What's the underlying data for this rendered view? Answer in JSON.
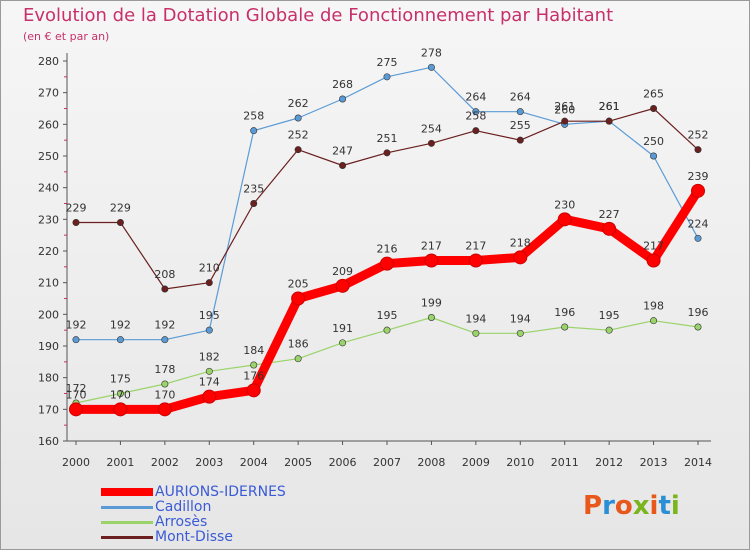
{
  "header": {
    "title": "Evolution de la Dotation Globale de Fonctionnement par Habitant",
    "subtitle": "(en € et par an)"
  },
  "logo": {
    "text": "Proxiti",
    "colors": [
      "#e8571b",
      "#2b8fd6",
      "#e8571b",
      "#7ab51d",
      "#e8571b",
      "#2b8fd6",
      "#7ab51d"
    ]
  },
  "chart_data": {
    "type": "line",
    "title": "Evolution de la Dotation Globale de Fonctionnement par Habitant",
    "subtitle": "(en € et par an)",
    "xlabel": "",
    "ylabel": "",
    "x": [
      "2000",
      "2001",
      "2002",
      "2003",
      "2004",
      "2005",
      "2006",
      "2007",
      "2008",
      "2009",
      "2010",
      "2011",
      "2012",
      "2013",
      "2014"
    ],
    "ylim": [
      160,
      280
    ],
    "yticks": [
      160,
      170,
      180,
      190,
      200,
      210,
      220,
      230,
      240,
      250,
      260,
      270,
      280
    ],
    "grid": false,
    "legend_position": "bottom-left",
    "series": [
      {
        "name": "AURIONS-IDERNES",
        "color": "#ff0000",
        "values": [
          170,
          170,
          170,
          174,
          176,
          205,
          209,
          216,
          217,
          217,
          218,
          230,
          227,
          217,
          239
        ],
        "labels": [
          "170",
          "170",
          "170",
          "174",
          "176",
          "205",
          "209",
          "216",
          "217",
          "217",
          "218",
          "230",
          "227",
          "217",
          "239"
        ]
      },
      {
        "name": "Cadillon",
        "color": "#5b9bd5",
        "values": [
          192,
          192,
          192,
          195,
          258,
          262,
          268,
          275,
          278,
          264,
          264,
          260,
          261,
          250,
          224
        ],
        "labels": [
          "192",
          "192",
          "192",
          "195",
          "258",
          "262",
          "268",
          "275",
          "278",
          "264",
          "264",
          "260",
          "261",
          "250",
          "224"
        ]
      },
      {
        "name": "Arrosès",
        "color": "#9ad36a",
        "values": [
          172,
          175,
          178,
          182,
          184,
          186,
          191,
          195,
          199,
          194,
          194,
          196,
          195,
          198,
          196
        ],
        "labels": [
          "172",
          "175",
          "178",
          "182",
          "184",
          "186",
          "191",
          "195",
          "199",
          "194",
          "194",
          "196",
          "195",
          "198",
          "196"
        ]
      },
      {
        "name": "Mont-Disse",
        "color": "#6b1f1f",
        "values": [
          229,
          229,
          208,
          210,
          235,
          252,
          247,
          251,
          254,
          258,
          255,
          261,
          261,
          265,
          252
        ],
        "labels": [
          "229",
          "229",
          "208",
          "210",
          "235",
          "252",
          "247",
          "251",
          "254",
          "258",
          "255",
          "261",
          "261",
          "265",
          "252"
        ]
      }
    ]
  }
}
